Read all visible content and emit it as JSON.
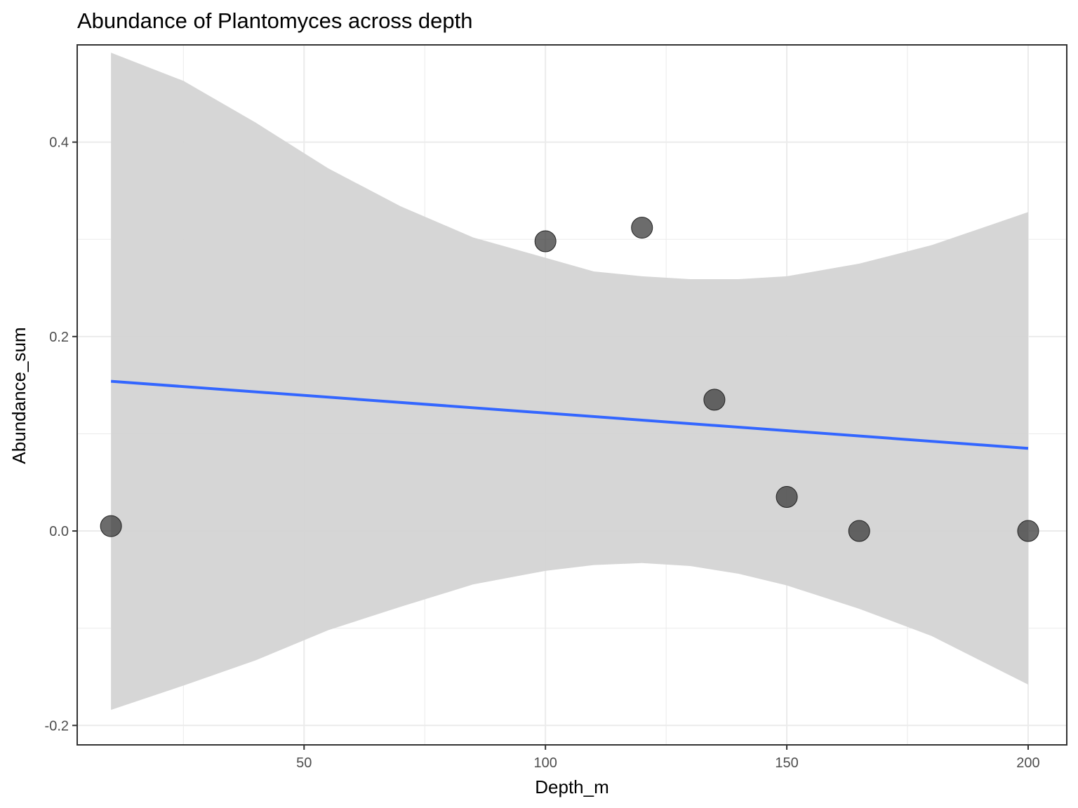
{
  "chart_data": {
    "type": "scatter",
    "title": "Abundance of Plantomyces across depth",
    "xlabel": "Depth_m",
    "ylabel": "Abundance_sum",
    "xlim": [
      3,
      208
    ],
    "ylim": [
      -0.22,
      0.5
    ],
    "x_ticks": [
      {
        "value": 50,
        "label": "50"
      },
      {
        "value": 100,
        "label": "100"
      },
      {
        "value": 150,
        "label": "150"
      },
      {
        "value": 200,
        "label": "200"
      }
    ],
    "y_ticks": [
      {
        "value": -0.2,
        "label": "-0.2"
      },
      {
        "value": 0.0,
        "label": "0.0"
      },
      {
        "value": 0.2,
        "label": "0.2"
      },
      {
        "value": 0.4,
        "label": "0.4"
      }
    ],
    "x_minor": [
      25,
      75,
      125,
      175
    ],
    "y_minor": [
      -0.1,
      0.1,
      0.3,
      0.5
    ],
    "grid": true,
    "points": [
      {
        "x": 10,
        "y": 0.005
      },
      {
        "x": 100,
        "y": 0.298
      },
      {
        "x": 120,
        "y": 0.312
      },
      {
        "x": 135,
        "y": 0.135
      },
      {
        "x": 150,
        "y": 0.035
      },
      {
        "x": 165,
        "y": 0.0
      },
      {
        "x": 200,
        "y": 0.0
      }
    ],
    "trend_line": {
      "x": [
        10,
        200
      ],
      "y": [
        0.154,
        0.085
      ]
    },
    "confidence_band": [
      {
        "x": 10,
        "lo": -0.184,
        "hi": 0.492
      },
      {
        "x": 25,
        "lo": -0.159,
        "hi": 0.463
      },
      {
        "x": 40,
        "lo": -0.133,
        "hi": 0.42
      },
      {
        "x": 55,
        "lo": -0.102,
        "hi": 0.373
      },
      {
        "x": 70,
        "lo": -0.078,
        "hi": 0.334
      },
      {
        "x": 85,
        "lo": -0.055,
        "hi": 0.302
      },
      {
        "x": 100,
        "lo": -0.041,
        "hi": 0.281
      },
      {
        "x": 110,
        "lo": -0.035,
        "hi": 0.267
      },
      {
        "x": 120,
        "lo": -0.033,
        "hi": 0.262
      },
      {
        "x": 130,
        "lo": -0.036,
        "hi": 0.259
      },
      {
        "x": 140,
        "lo": -0.044,
        "hi": 0.259
      },
      {
        "x": 150,
        "lo": -0.056,
        "hi": 0.262
      },
      {
        "x": 165,
        "lo": -0.08,
        "hi": 0.275
      },
      {
        "x": 180,
        "lo": -0.108,
        "hi": 0.294
      },
      {
        "x": 200,
        "lo": -0.158,
        "hi": 0.328
      }
    ],
    "colors": {
      "point": "#333333",
      "line": "#3366FF",
      "band": "#d4d4d4",
      "grid": "#ebebeb",
      "panel_border": "#333333"
    }
  }
}
